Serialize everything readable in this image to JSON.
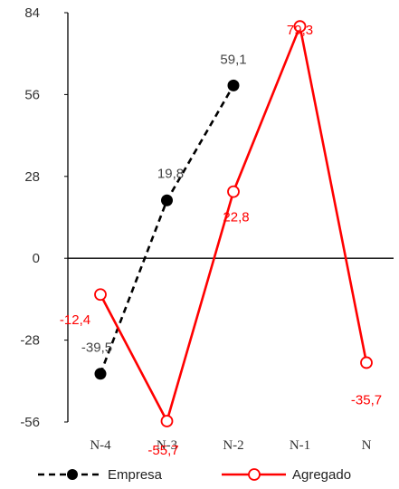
{
  "chart_data": {
    "type": "line",
    "categories": [
      "N-4",
      "N-3",
      "N-2",
      "N-1",
      "N"
    ],
    "ylim": [
      -56,
      84
    ],
    "yticks": [
      -56,
      -28,
      0,
      28,
      56,
      84
    ],
    "ytick_labels": [
      "-56",
      "-28",
      "0",
      "28",
      "56",
      "84"
    ],
    "grid": false,
    "legend_position": "bottom",
    "series": [
      {
        "name": "Empresa",
        "values": [
          -39.5,
          19.8,
          59.1,
          null,
          null
        ],
        "labels": [
          "-39,5",
          "19,8",
          "59,1",
          "",
          ""
        ],
        "color": "#000000",
        "line_style": "dashed",
        "marker": "filled-circle"
      },
      {
        "name": "Agregado",
        "values": [
          -12.4,
          -55.7,
          22.8,
          79.3,
          -35.7
        ],
        "labels": [
          "-12,4",
          "-55,7",
          "22,8",
          "79,3",
          "-35,7"
        ],
        "color": "#ff0000",
        "line_style": "solid",
        "marker": "open-circle"
      }
    ]
  }
}
